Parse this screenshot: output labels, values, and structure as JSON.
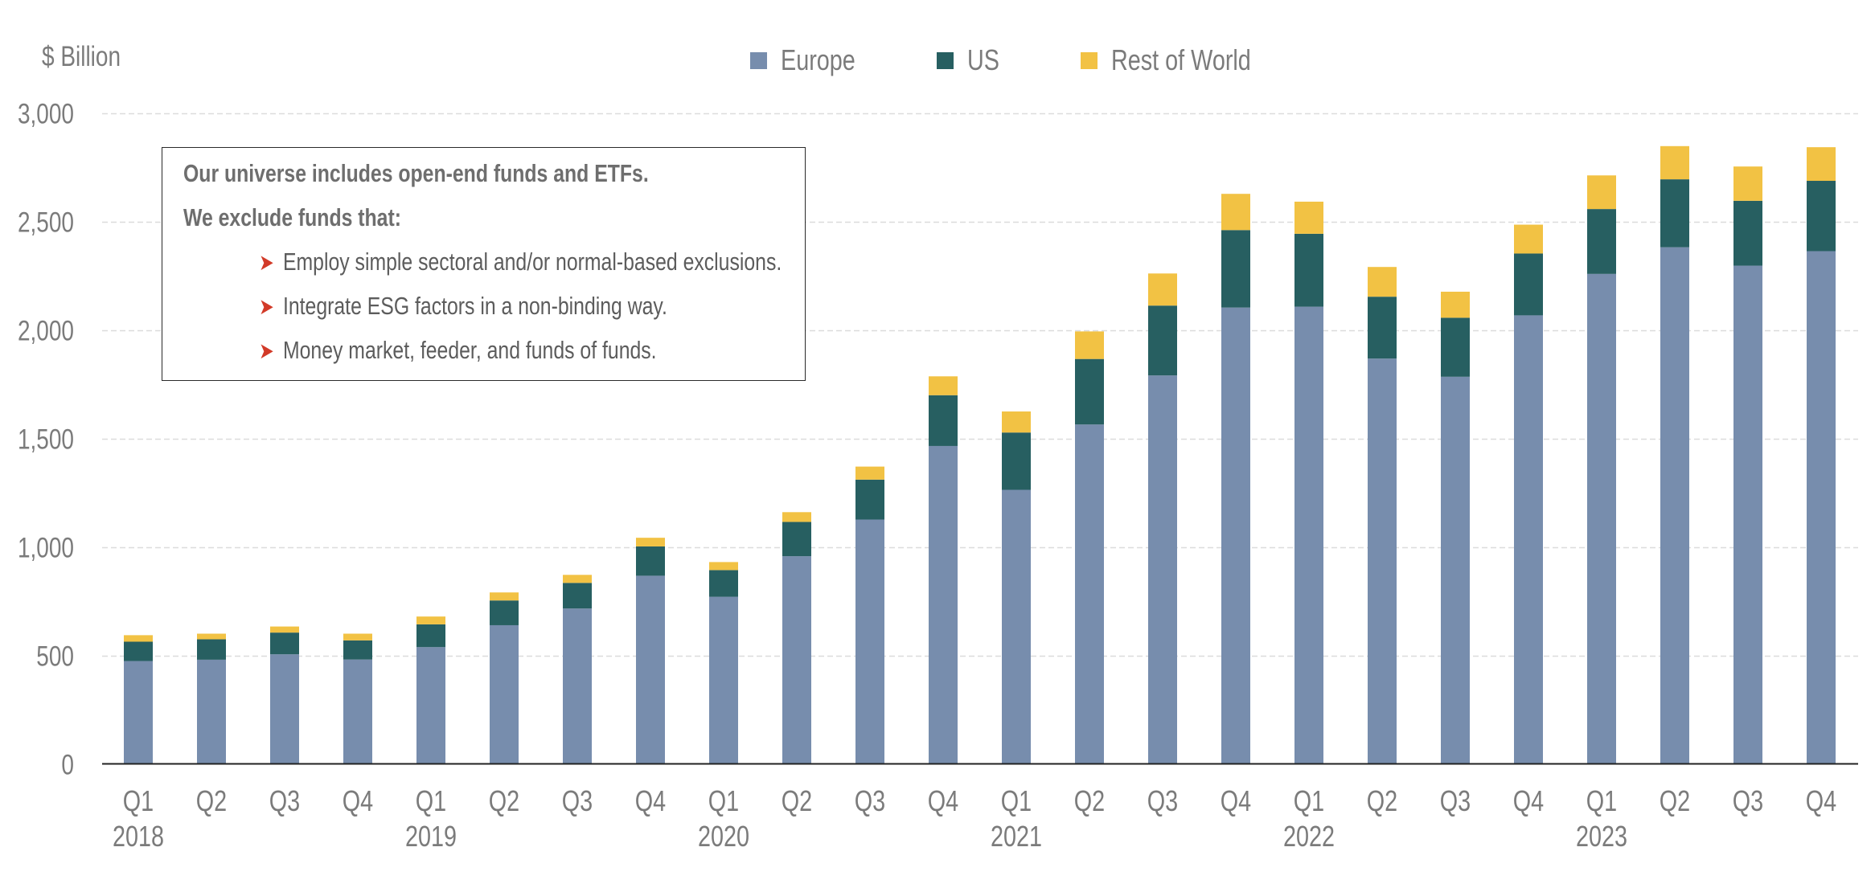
{
  "chart_data": {
    "type": "bar",
    "stacked": true,
    "title": "",
    "ylabel": "$ Billion",
    "xlabel": "",
    "ylim": [
      0,
      3000
    ],
    "yticks": [
      0,
      500,
      1000,
      1500,
      2000,
      2500,
      3000
    ],
    "ytick_labels": [
      "0",
      "500",
      "1,000",
      "1,500",
      "2,000",
      "2,500",
      "3,000"
    ],
    "grid": "horizontal-dashed",
    "legend_position": "top-center",
    "categories": [
      "Q1 2018",
      "Q2 2018",
      "Q3 2018",
      "Q4 2018",
      "Q1 2019",
      "Q2 2019",
      "Q3 2019",
      "Q4 2019",
      "Q1 2020",
      "Q2 2020",
      "Q3 2020",
      "Q4 2020",
      "Q1 2021",
      "Q2 2021",
      "Q3 2021",
      "Q4 2021",
      "Q1 2022",
      "Q2 2022",
      "Q3 2022",
      "Q4 2022",
      "Q1 2023",
      "Q2 2023",
      "Q3 2023",
      "Q4 2023"
    ],
    "quarter_labels": [
      "Q1",
      "Q2",
      "Q3",
      "Q4",
      "Q1",
      "Q2",
      "Q3",
      "Q4",
      "Q1",
      "Q2",
      "Q3",
      "Q4",
      "Q1",
      "Q2",
      "Q3",
      "Q4",
      "Q1",
      "Q2",
      "Q3",
      "Q4",
      "Q1",
      "Q2",
      "Q3",
      "Q4"
    ],
    "year_labels": [
      "2018",
      "",
      "",
      "",
      "2019",
      "",
      "",
      "",
      "2020",
      "",
      "",
      "",
      "2021",
      "",
      "",
      "",
      "2022",
      "",
      "",
      "",
      "2023",
      "",
      "",
      ""
    ],
    "series": [
      {
        "name": "Europe",
        "color": "#778dad",
        "values": [
          474,
          480,
          505,
          481,
          538,
          639,
          716,
          867,
          770,
          957,
          1126,
          1465,
          1263,
          1564,
          1790,
          2103,
          2107,
          1868,
          1784,
          2067,
          2258,
          2381,
          2296,
          2363
        ]
      },
      {
        "name": "US",
        "color": "#275f61",
        "values": [
          89,
          94,
          100,
          88,
          105,
          114,
          118,
          135,
          123,
          158,
          184,
          234,
          264,
          302,
          322,
          357,
          336,
          285,
          272,
          285,
          299,
          313,
          299,
          324
        ]
      },
      {
        "name": "Rest of World",
        "color": "#f2c244",
        "values": [
          30,
          26,
          28,
          31,
          36,
          37,
          37,
          40,
          37,
          45,
          60,
          87,
          97,
          127,
          148,
          167,
          148,
          137,
          120,
          133,
          155,
          153,
          158,
          155
        ]
      }
    ]
  },
  "note": {
    "heading": "Our universe includes open-end funds and ETFs.",
    "subheading": "We exclude funds that:",
    "bullet_icon": "arrow-right-icon",
    "bullets": [
      "Employ simple sectoral and/or normal-based exclusions.",
      "Integrate ESG factors in a non-binding way.",
      "Money market, feeder, and funds of funds."
    ]
  }
}
